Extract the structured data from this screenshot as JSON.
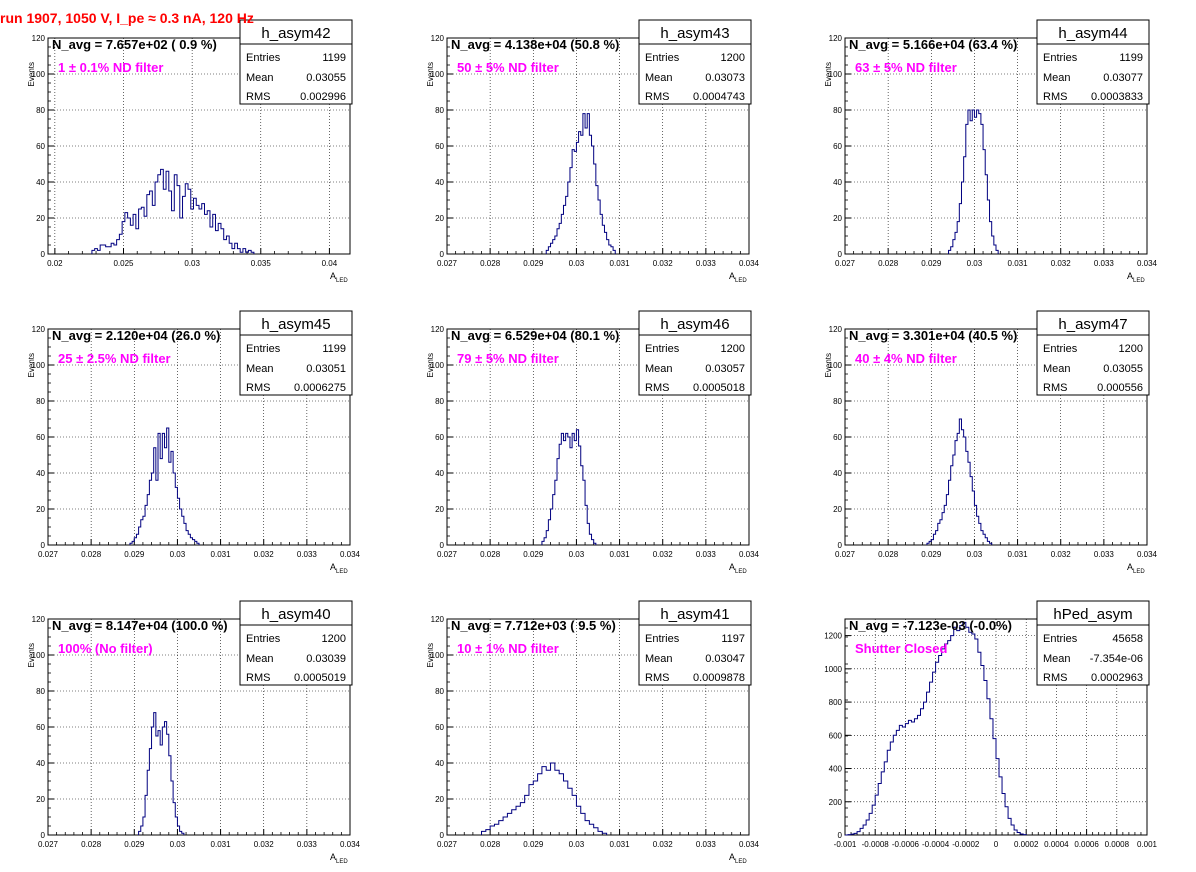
{
  "page": {
    "title": "run 1907,  1050 V, I_pe ≈ 0.3 nA, 120 Hz",
    "title_color": "#ff0000",
    "hist_color": "#000080",
    "label_color": "#ff00ff",
    "grid_color": "#000000"
  },
  "chart_data": [
    {
      "type": "bar",
      "name": "h_asym42",
      "nlabel": "N_avg = 7.657e+02 ( 0.9 %)",
      "filter": "1 ± 0.1% ND filter",
      "stats": {
        "entries": "1199",
        "mean": "0.03055",
        "rms": "0.002996"
      },
      "ylabel": "Events",
      "xlabel": "A",
      "xlabel_sub": "LED",
      "ylim": [
        0,
        120
      ],
      "xlim": [
        0.0195,
        0.0415
      ],
      "yticks": [
        "0",
        "20",
        "40",
        "60",
        "80",
        "100",
        "120"
      ],
      "xticks": [
        "0.02",
        "0.025",
        "0.03",
        "0.035",
        "0.04"
      ],
      "xtick_values": [
        0.02,
        0.025,
        0.03,
        0.035,
        0.04
      ],
      "bins": {
        "start": 0.0227,
        "width": 0.0002,
        "values": [
          2,
          3,
          2,
          5,
          5,
          4,
          4,
          6,
          5,
          8,
          11,
          18,
          23,
          20,
          16,
          22,
          14,
          25,
          26,
          21,
          33,
          35,
          27,
          40,
          44,
          47,
          36,
          46,
          35,
          24,
          44,
          38,
          20,
          32,
          39,
          36,
          25,
          31,
          27,
          25,
          28,
          22,
          24,
          15,
          22,
          13,
          17,
          14,
          8,
          10,
          6,
          3,
          6,
          3,
          1,
          3,
          1,
          2,
          1
        ]
      }
    },
    {
      "type": "bar",
      "name": "h_asym43",
      "nlabel": "N_avg = 4.138e+04 (50.8 %)",
      "filter": "50 ± 5% ND filter",
      "stats": {
        "entries": "1200",
        "mean": "0.03073",
        "rms": "0.0004743"
      },
      "ylabel": "Events",
      "xlabel": "A",
      "xlabel_sub": "LED",
      "ylim": [
        0,
        120
      ],
      "xlim": [
        0.027,
        0.034
      ],
      "yticks": [
        "0",
        "20",
        "40",
        "60",
        "80",
        "100",
        "120"
      ],
      "xticks": [
        "0.027",
        "0.028",
        "0.029",
        "0.03",
        "0.031",
        "0.032",
        "0.033",
        "0.034"
      ],
      "xtick_values": [
        0.027,
        0.028,
        0.029,
        0.03,
        0.031,
        0.032,
        0.033,
        0.034
      ],
      "bins": {
        "start": 0.0293,
        "width": 5e-05,
        "values": [
          2,
          4,
          6,
          8,
          10,
          14,
          17,
          22,
          27,
          32,
          40,
          48,
          58,
          57,
          62,
          68,
          66,
          78,
          70,
          78,
          66,
          60,
          50,
          38,
          30,
          22,
          16,
          12,
          8,
          5,
          4,
          2
        ]
      }
    },
    {
      "type": "bar",
      "name": "h_asym44",
      "nlabel": "N_avg = 5.166e+04 (63.4 %)",
      "filter": "63 ± 5% ND filter",
      "stats": {
        "entries": "1199",
        "mean": "0.03077",
        "rms": "0.0003833"
      },
      "ylabel": "Events",
      "xlabel": "A",
      "xlabel_sub": "LED",
      "ylim": [
        0,
        120
      ],
      "xlim": [
        0.027,
        0.034
      ],
      "yticks": [
        "0",
        "20",
        "40",
        "60",
        "80",
        "100",
        "120"
      ],
      "xticks": [
        "0.027",
        "0.028",
        "0.029",
        "0.03",
        "0.031",
        "0.032",
        "0.033",
        "0.034"
      ],
      "xtick_values": [
        0.027,
        0.028,
        0.029,
        0.03,
        0.031,
        0.032,
        0.033,
        0.034
      ],
      "bins": {
        "start": 0.0294,
        "width": 5e-05,
        "values": [
          2,
          4,
          8,
          12,
          18,
          28,
          40,
          54,
          72,
          80,
          74,
          80,
          76,
          80,
          78,
          72,
          58,
          44,
          30,
          18,
          10,
          5,
          2
        ]
      }
    },
    {
      "type": "bar",
      "name": "h_asym45",
      "nlabel": "N_avg = 2.120e+04 (26.0 %)",
      "filter": "25 ± 2.5% ND filter",
      "stats": {
        "entries": "1199",
        "mean": "0.03051",
        "rms": "0.0006275"
      },
      "ylabel": "Events",
      "xlabel": "A",
      "xlabel_sub": "LED",
      "ylim": [
        0,
        120
      ],
      "xlim": [
        0.027,
        0.034
      ],
      "yticks": [
        "0",
        "20",
        "40",
        "60",
        "80",
        "100",
        "120"
      ],
      "xticks": [
        "0.027",
        "0.028",
        "0.029",
        "0.03",
        "0.031",
        "0.032",
        "0.033",
        "0.034"
      ],
      "xtick_values": [
        0.027,
        0.028,
        0.029,
        0.03,
        0.031,
        0.032,
        0.033,
        0.034
      ],
      "bins": {
        "start": 0.0289,
        "width": 5e-05,
        "values": [
          1,
          2,
          4,
          6,
          10,
          14,
          16,
          22,
          28,
          36,
          40,
          54,
          36,
          62,
          48,
          62,
          54,
          65,
          46,
          52,
          40,
          32,
          26,
          20,
          16,
          12,
          8,
          6,
          4,
          3,
          2,
          1
        ]
      }
    },
    {
      "type": "bar",
      "name": "h_asym46",
      "nlabel": "N_avg = 6.529e+04 (80.1 %)",
      "filter": "79 ± 5% ND filter",
      "stats": {
        "entries": "1200",
        "mean": "0.03057",
        "rms": "0.0005018"
      },
      "ylabel": "Events",
      "xlabel": "A",
      "xlabel_sub": "LED",
      "ylim": [
        0,
        120
      ],
      "xlim": [
        0.027,
        0.034
      ],
      "yticks": [
        "0",
        "20",
        "40",
        "60",
        "80",
        "100",
        "120"
      ],
      "xticks": [
        "0.027",
        "0.028",
        "0.029",
        "0.03",
        "0.031",
        "0.032",
        "0.033",
        "0.034"
      ],
      "xtick_values": [
        0.027,
        0.028,
        0.029,
        0.03,
        0.031,
        0.032,
        0.033,
        0.034
      ],
      "bins": {
        "start": 0.0292,
        "width": 5e-05,
        "values": [
          2,
          4,
          8,
          14,
          20,
          28,
          36,
          48,
          56,
          62,
          58,
          62,
          60,
          54,
          62,
          58,
          64,
          55,
          44,
          36,
          22,
          12,
          6,
          3,
          1
        ]
      }
    },
    {
      "type": "bar",
      "name": "h_asym47",
      "nlabel": "N_avg = 3.301e+04 (40.5 %)",
      "filter": "40 ± 4% ND filter",
      "stats": {
        "entries": "1200",
        "mean": "0.03055",
        "rms": "0.000556"
      },
      "ylabel": "Events",
      "xlabel": "A",
      "xlabel_sub": "LED",
      "ylim": [
        0,
        120
      ],
      "xlim": [
        0.027,
        0.034
      ],
      "yticks": [
        "0",
        "20",
        "40",
        "60",
        "80",
        "100",
        "120"
      ],
      "xticks": [
        "0.027",
        "0.028",
        "0.029",
        "0.03",
        "0.031",
        "0.032",
        "0.033",
        "0.034"
      ],
      "xtick_values": [
        0.027,
        0.028,
        0.029,
        0.03,
        0.031,
        0.032,
        0.033,
        0.034
      ],
      "bins": {
        "start": 0.0289,
        "width": 5e-05,
        "values": [
          1,
          2,
          3,
          6,
          8,
          12,
          14,
          18,
          22,
          28,
          36,
          44,
          50,
          58,
          62,
          70,
          64,
          60,
          52,
          46,
          38,
          30,
          22,
          16,
          12,
          8,
          6,
          4,
          2,
          1
        ]
      }
    },
    {
      "type": "bar",
      "name": "h_asym40",
      "nlabel": "N_avg = 8.147e+04 (100.0 %)",
      "filter": "100% (No filter)",
      "stats": {
        "entries": "1200",
        "mean": "0.03039",
        "rms": "0.0005019"
      },
      "ylabel": "Events",
      "xlabel": "A",
      "xlabel_sub": "LED",
      "ylim": [
        0,
        120
      ],
      "xlim": [
        0.027,
        0.034
      ],
      "yticks": [
        "0",
        "20",
        "40",
        "60",
        "80",
        "100",
        "120"
      ],
      "xticks": [
        "0.027",
        "0.028",
        "0.029",
        "0.03",
        "0.031",
        "0.032",
        "0.033",
        "0.034"
      ],
      "xtick_values": [
        0.027,
        0.028,
        0.029,
        0.03,
        0.031,
        0.032,
        0.033,
        0.034
      ],
      "bins": {
        "start": 0.0291,
        "width": 5e-05,
        "values": [
          2,
          5,
          10,
          22,
          36,
          48,
          60,
          68,
          55,
          58,
          50,
          60,
          63,
          56,
          44,
          30,
          18,
          10,
          5,
          2,
          1
        ]
      }
    },
    {
      "type": "bar",
      "name": "h_asym41",
      "nlabel": "N_avg = 7.712e+03 ( 9.5 %)",
      "filter": "10 ± 1% ND filter",
      "stats": {
        "entries": "1197",
        "mean": "0.03047",
        "rms": "0.0009878"
      },
      "ylabel": "Events",
      "xlabel": "A",
      "xlabel_sub": "LED",
      "ylim": [
        0,
        120
      ],
      "xlim": [
        0.027,
        0.034
      ],
      "yticks": [
        "0",
        "20",
        "40",
        "60",
        "80",
        "100",
        "120"
      ],
      "xticks": [
        "0.027",
        "0.028",
        "0.029",
        "0.03",
        "0.031",
        "0.032",
        "0.033",
        "0.034"
      ],
      "xtick_values": [
        0.027,
        0.028,
        0.029,
        0.03,
        0.031,
        0.032,
        0.033,
        0.034
      ],
      "bins": {
        "start": 0.0278,
        "width": 0.0001,
        "values": [
          2,
          3,
          5,
          6,
          8,
          10,
          12,
          14,
          16,
          18,
          22,
          28,
          30,
          34,
          38,
          36,
          40,
          36,
          34,
          30,
          26,
          22,
          16,
          12,
          8,
          6,
          4,
          2,
          1
        ]
      }
    },
    {
      "type": "bar",
      "name": "hPed_asym",
      "nlabel": "N_avg = -7.123e-03 (-0.0%)",
      "filter": "Shutter Closed",
      "stats": {
        "entries": "45658",
        "mean": "-7.354e-06",
        "rms": "0.0002963"
      },
      "ylabel": "",
      "xlabel": "",
      "xlabel_sub": "",
      "ylim": [
        0,
        1300
      ],
      "xlim": [
        -0.001,
        0.001
      ],
      "yticks": [
        "0",
        "200",
        "400",
        "600",
        "800",
        "1000",
        "1200"
      ],
      "xticks": [
        "-0.001",
        "-0.0008",
        "-0.0006",
        "-0.0004",
        "-0.0002",
        "0",
        "0.0002",
        "0.0004",
        "0.0006",
        "0.0008",
        "0.001"
      ],
      "xtick_values": [
        -0.001,
        -0.0008,
        -0.0006,
        -0.0004,
        -0.0002,
        0,
        0.0002,
        0.0004,
        0.0006,
        0.0008,
        0.001
      ],
      "bins": {
        "start": -0.001,
        "width": 2e-05,
        "values": [
          0,
          2,
          5,
          10,
          20,
          40,
          60,
          90,
          130,
          180,
          240,
          310,
          380,
          440,
          510,
          560,
          600,
          630,
          660,
          650,
          670,
          690,
          680,
          700,
          720,
          760,
          800,
          860,
          920,
          980,
          1040,
          1080,
          1120,
          1150,
          1170,
          1200,
          1250,
          1230,
          1260,
          1280,
          1250,
          1220,
          1210,
          1180,
          1100,
          1020,
          930,
          820,
          700,
          580,
          460,
          350,
          250,
          170,
          100,
          60,
          30,
          15,
          6,
          2
        ]
      }
    }
  ]
}
